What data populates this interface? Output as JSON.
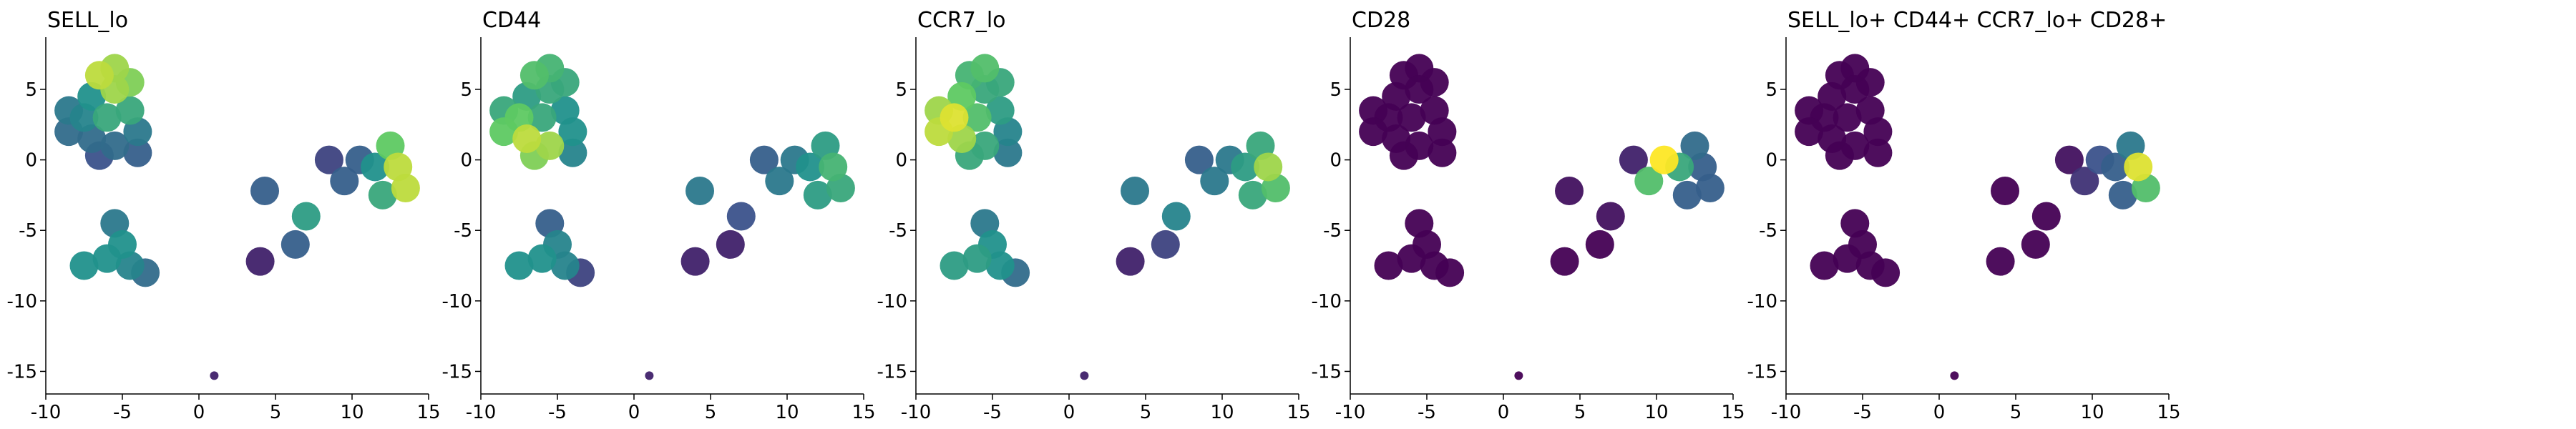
{
  "chart_data": [
    {
      "type": "scatter",
      "title": "SELL_lo",
      "x": [
        -5.5,
        -6.5,
        -4.5,
        -5.5,
        -7,
        -8.5,
        -7.5,
        -6,
        -4.5,
        -8.5,
        -7,
        -5.5,
        -4,
        -6.5,
        -4,
        -7.5,
        -6,
        -4.5,
        -5,
        -5.5,
        -3.5,
        13,
        12.5,
        13.5,
        11.5,
        10.5,
        12,
        9.5,
        8.5,
        4.3,
        7,
        6.3,
        4,
        1
      ],
      "y": [
        6.5,
        6,
        5.5,
        5,
        4.5,
        3.5,
        3,
        3,
        3.5,
        2,
        1.5,
        1,
        2,
        0.3,
        0.5,
        -7.5,
        -7,
        -7.5,
        -6,
        -4.5,
        -8,
        -0.5,
        1,
        -2,
        -0.5,
        0,
        -2.5,
        -1.5,
        0,
        -2.2,
        -4,
        -6,
        -7.2,
        -15.3
      ],
      "values": [
        0.85,
        0.9,
        0.8,
        0.85,
        0.5,
        0.4,
        0.45,
        0.6,
        0.6,
        0.35,
        0.35,
        0.35,
        0.4,
        0.25,
        0.3,
        0.5,
        0.5,
        0.45,
        0.5,
        0.4,
        0.35,
        0.9,
        0.75,
        0.9,
        0.5,
        0.3,
        0.6,
        0.3,
        0.2,
        0.3,
        0.55,
        0.3,
        0.1,
        0.1
      ],
      "colormap": [
        "#440154",
        "#3b528b",
        "#21918c",
        "#5ec962",
        "#fde725"
      ],
      "xlim": [
        -10,
        15
      ],
      "ylim": [
        -16.6,
        8.7
      ],
      "xticks": [
        -10,
        -5,
        0,
        5,
        10,
        15
      ],
      "yticks": [
        -15,
        -10,
        -5,
        0,
        5
      ]
    },
    {
      "type": "scatter",
      "title": "CD44",
      "x": [
        -5.5,
        -6.5,
        -4.5,
        -5.5,
        -7,
        -8.5,
        -7.5,
        -6,
        -4.5,
        -8.5,
        -7,
        -5.5,
        -4,
        -6.5,
        -4,
        -7.5,
        -6,
        -4.5,
        -5,
        -5.5,
        -3.5,
        13,
        12.5,
        13.5,
        11.5,
        10.5,
        12,
        9.5,
        8.5,
        4.3,
        7,
        6.3,
        4,
        1
      ],
      "y": [
        6.5,
        6,
        5.5,
        5,
        4.5,
        3.5,
        3,
        3,
        3.5,
        2,
        1.5,
        1,
        2,
        0.3,
        0.5,
        -7.5,
        -7,
        -7.5,
        -6,
        -4.5,
        -8,
        -0.5,
        1,
        -2,
        -0.5,
        0,
        -2.5,
        -1.5,
        0,
        -2.2,
        -4,
        -6,
        -7.2,
        -15.3
      ],
      "values": [
        0.65,
        0.7,
        0.6,
        0.6,
        0.55,
        0.6,
        0.75,
        0.6,
        0.5,
        0.75,
        0.9,
        0.85,
        0.5,
        0.8,
        0.45,
        0.5,
        0.5,
        0.45,
        0.45,
        0.3,
        0.2,
        0.65,
        0.55,
        0.6,
        0.5,
        0.4,
        0.55,
        0.4,
        0.3,
        0.4,
        0.25,
        0.1,
        0.1,
        0.1
      ],
      "colormap": [
        "#440154",
        "#3b528b",
        "#21918c",
        "#5ec962",
        "#fde725"
      ],
      "xlim": [
        -10,
        15
      ],
      "ylim": [
        -16.6,
        8.7
      ],
      "xticks": [
        -10,
        -5,
        0,
        5,
        10,
        15
      ],
      "yticks": [
        -15,
        -10,
        -5,
        0,
        5
      ]
    },
    {
      "type": "scatter",
      "title": "CCR7_lo",
      "x": [
        -5.5,
        -6.5,
        -4.5,
        -5.5,
        -7,
        -8.5,
        -7.5,
        -6,
        -4.5,
        -8.5,
        -7,
        -5.5,
        -4,
        -6.5,
        -4,
        -7.5,
        -6,
        -4.5,
        -5,
        -5.5,
        -3.5,
        13,
        12.5,
        13.5,
        11.5,
        10.5,
        12,
        9.5,
        8.5,
        4.3,
        7,
        6.3,
        4,
        1
      ],
      "y": [
        6.5,
        6,
        5.5,
        5,
        4.5,
        3.5,
        3,
        3,
        3.5,
        2,
        1.5,
        1,
        2,
        0.3,
        0.5,
        -7.5,
        -7,
        -7.5,
        -6,
        -4.5,
        -8,
        -0.5,
        1,
        -2,
        -0.5,
        0,
        -2.5,
        -1.5,
        0,
        -2.2,
        -4,
        -6,
        -7.2,
        -15.3
      ],
      "values": [
        0.7,
        0.65,
        0.6,
        0.6,
        0.75,
        0.85,
        0.95,
        0.7,
        0.55,
        0.9,
        0.85,
        0.6,
        0.45,
        0.6,
        0.4,
        0.55,
        0.55,
        0.5,
        0.5,
        0.4,
        0.35,
        0.85,
        0.6,
        0.7,
        0.55,
        0.4,
        0.6,
        0.4,
        0.3,
        0.4,
        0.45,
        0.2,
        0.1,
        0.1
      ],
      "colormap": [
        "#440154",
        "#3b528b",
        "#21918c",
        "#5ec962",
        "#fde725"
      ],
      "xlim": [
        -10,
        15
      ],
      "ylim": [
        -16.6,
        8.7
      ],
      "xticks": [
        -10,
        -5,
        0,
        5,
        10,
        15
      ],
      "yticks": [
        -15,
        -10,
        -5,
        0,
        5
      ]
    },
    {
      "type": "scatter",
      "title": "CD28",
      "x": [
        -5.5,
        -6.5,
        -4.5,
        -5.5,
        -7,
        -8.5,
        -7.5,
        -6,
        -4.5,
        -8.5,
        -7,
        -5.5,
        -4,
        -6.5,
        -4,
        -7.5,
        -6,
        -4.5,
        -5,
        -5.5,
        -3.5,
        13,
        12.5,
        13.5,
        11.5,
        10.5,
        12,
        9.5,
        8.5,
        4.3,
        7,
        6.3,
        4,
        1
      ],
      "y": [
        6.5,
        6,
        5.5,
        5,
        4.5,
        3.5,
        3,
        3,
        3.5,
        2,
        1.5,
        1,
        2,
        0.3,
        0.5,
        -7.5,
        -7,
        -7.5,
        -6,
        -4.5,
        -8,
        -0.5,
        1,
        -2,
        -0.5,
        0,
        -2.5,
        -1.5,
        0,
        -2.2,
        -4,
        -6,
        -7.2,
        -15.3
      ],
      "values": [
        0,
        0,
        0,
        0,
        0,
        0,
        0,
        0,
        0,
        0,
        0,
        0,
        0,
        0,
        0,
        0,
        0,
        0,
        0,
        0,
        0,
        0.3,
        0.35,
        0.3,
        0.6,
        1,
        0.3,
        0.7,
        0.1,
        0.05,
        0.05,
        0,
        0,
        0
      ],
      "colormap": [
        "#440154",
        "#3b528b",
        "#21918c",
        "#5ec962",
        "#fde725"
      ],
      "xlim": [
        -10,
        15
      ],
      "ylim": [
        -16.6,
        8.7
      ],
      "xticks": [
        -10,
        -5,
        0,
        5,
        10,
        15
      ],
      "yticks": [
        -15,
        -10,
        -5,
        0,
        5
      ]
    },
    {
      "type": "scatter",
      "title": "SELL_lo+ CD44+ CCR7_lo+ CD28+",
      "x": [
        -5.5,
        -6.5,
        -4.5,
        -5.5,
        -7,
        -8.5,
        -7.5,
        -6,
        -4.5,
        -8.5,
        -7,
        -5.5,
        -4,
        -6.5,
        -4,
        -7.5,
        -6,
        -4.5,
        -5,
        -5.5,
        -3.5,
        13,
        12.5,
        13.5,
        11.5,
        10.5,
        12,
        9.5,
        8.5,
        4.3,
        7,
        6.3,
        4,
        1
      ],
      "y": [
        6.5,
        6,
        5.5,
        5,
        4.5,
        3.5,
        3,
        3,
        3.5,
        2,
        1.5,
        1,
        2,
        0.3,
        0.5,
        -7.5,
        -7,
        -7.5,
        -6,
        -4.5,
        -8,
        -0.5,
        1,
        -2,
        -0.5,
        0,
        -2.5,
        -1.5,
        0,
        -2.2,
        -4,
        -6,
        -7.2,
        -15.3
      ],
      "values": [
        0,
        0,
        0,
        0,
        0,
        0,
        0,
        0,
        0,
        0,
        0,
        0,
        0,
        0,
        0,
        0,
        0,
        0,
        0,
        0,
        0,
        0.95,
        0.4,
        0.7,
        0.3,
        0.25,
        0.3,
        0.15,
        0.05,
        0,
        0,
        0,
        0,
        0
      ],
      "colormap": [
        "#440154",
        "#3b528b",
        "#21918c",
        "#5ec962",
        "#fde725"
      ],
      "xlim": [
        -10,
        15
      ],
      "ylim": [
        -16.6,
        8.7
      ],
      "xticks": [
        -10,
        -5,
        0,
        5,
        10,
        15
      ],
      "yticks": [
        -15,
        -10,
        -5,
        0,
        5
      ]
    }
  ]
}
